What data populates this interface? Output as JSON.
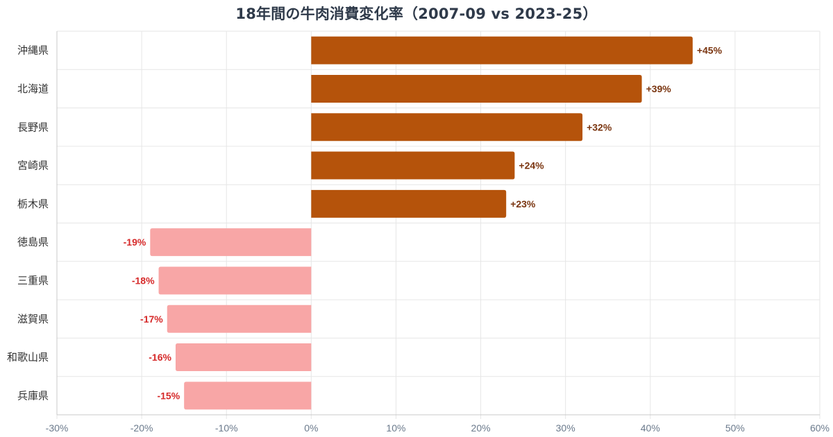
{
  "chart_data": {
    "type": "bar",
    "orientation": "horizontal",
    "title": "18年間の牛肉消費変化率（2007-09 vs 2023-25）",
    "xlabel": "",
    "ylabel": "",
    "xlim": [
      -30,
      60
    ],
    "x_tick_values": [
      -30,
      -20,
      -10,
      0,
      10,
      20,
      30,
      40,
      50,
      60
    ],
    "x_tick_labels": [
      "-30%",
      "-20%",
      "-10%",
      "0%",
      "10%",
      "20%",
      "30%",
      "40%",
      "50%",
      "60%"
    ],
    "grid": true,
    "legend": "none",
    "categories": [
      "沖縄県",
      "北海道",
      "長野県",
      "宮崎県",
      "栃木県",
      "徳島県",
      "三重県",
      "滋賀県",
      "和歌山県",
      "兵庫県"
    ],
    "values": [
      45,
      39,
      32,
      24,
      23,
      -19,
      -18,
      -17,
      -16,
      -15
    ],
    "value_labels": [
      "+45%",
      "+39%",
      "+32%",
      "+24%",
      "+23%",
      "-19%",
      "-18%",
      "-17%",
      "-16%",
      "-15%"
    ],
    "colors": {
      "positive_bar": "#b5530b",
      "negative_bar": "#f8a6a6",
      "positive_label": "#7a3510",
      "negative_label": "#d62a2a",
      "grid": "#e6e6e6",
      "axis": "#c8c8c8"
    }
  }
}
